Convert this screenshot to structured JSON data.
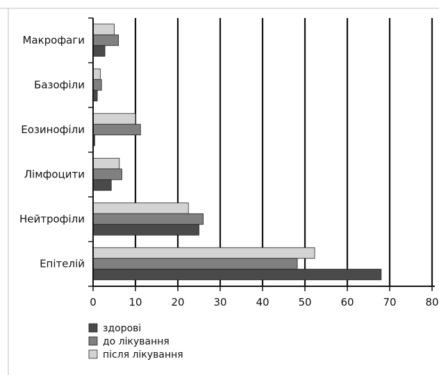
{
  "chart_data": {
    "type": "bar",
    "orientation": "horizontal",
    "categories": [
      "Макрофаги",
      "Базофіли",
      "Еозинофіли",
      "Лімфоцити",
      "Нейтрофіли",
      "Епітелій"
    ],
    "series": [
      {
        "name": "після лікування",
        "color": "#d3d3d3",
        "values": [
          5,
          1.7,
          10,
          6.2,
          22.5,
          52.3
        ]
      },
      {
        "name": "до лікування",
        "color": "#808080",
        "values": [
          6,
          2,
          11.2,
          6.8,
          26,
          48.2
        ]
      },
      {
        "name": "здорові",
        "color": "#4a4a4a",
        "values": [
          2.8,
          1,
          0.4,
          4.3,
          25,
          68
        ]
      }
    ],
    "x_ticks": [
      0,
      10,
      20,
      30,
      40,
      50,
      60,
      70,
      80
    ],
    "xlim": [
      0,
      80
    ],
    "grid": "vertical",
    "legend_position": "bottom-left",
    "legend_order": [
      "здорові",
      "до лікування",
      "після лікування"
    ],
    "title": "",
    "xlabel": "",
    "ylabel": ""
  }
}
